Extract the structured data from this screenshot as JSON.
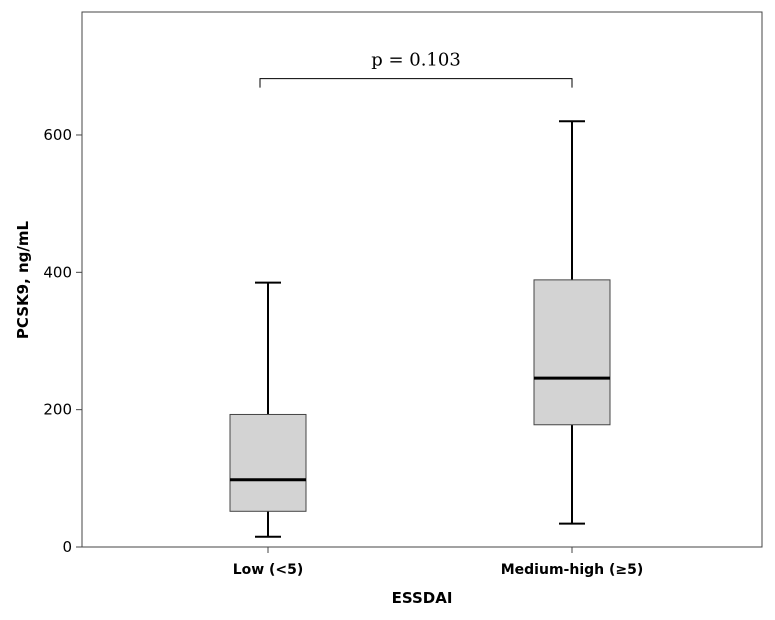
{
  "chart_data": {
    "type": "box",
    "title": "",
    "xlabel": "ESSDAI",
    "ylabel": "PCSK9, ng/mL",
    "ylim": [
      0,
      780
    ],
    "yticks": [
      0,
      200,
      400,
      600
    ],
    "ytick_labels": [
      "0",
      "200",
      "400",
      "600"
    ],
    "categories": [
      "Low (<5)",
      "Medium-high (≥5)"
    ],
    "boxes": [
      {
        "category": "Low (<5)",
        "whisker_low": 15,
        "q1": 52,
        "median": 98,
        "q3": 193,
        "whisker_high": 385
      },
      {
        "category": "Medium-high (≥5)",
        "whisker_low": 34,
        "q1": 178,
        "median": 246,
        "q3": 389,
        "whisker_high": 620
      }
    ],
    "annotation": {
      "text": "p = 0.103",
      "level": 682
    },
    "grid": false,
    "colors": {
      "box_fill": "#d3d3d3",
      "box_stroke": "#444444",
      "median": "#000000",
      "axis": "#444444"
    }
  }
}
